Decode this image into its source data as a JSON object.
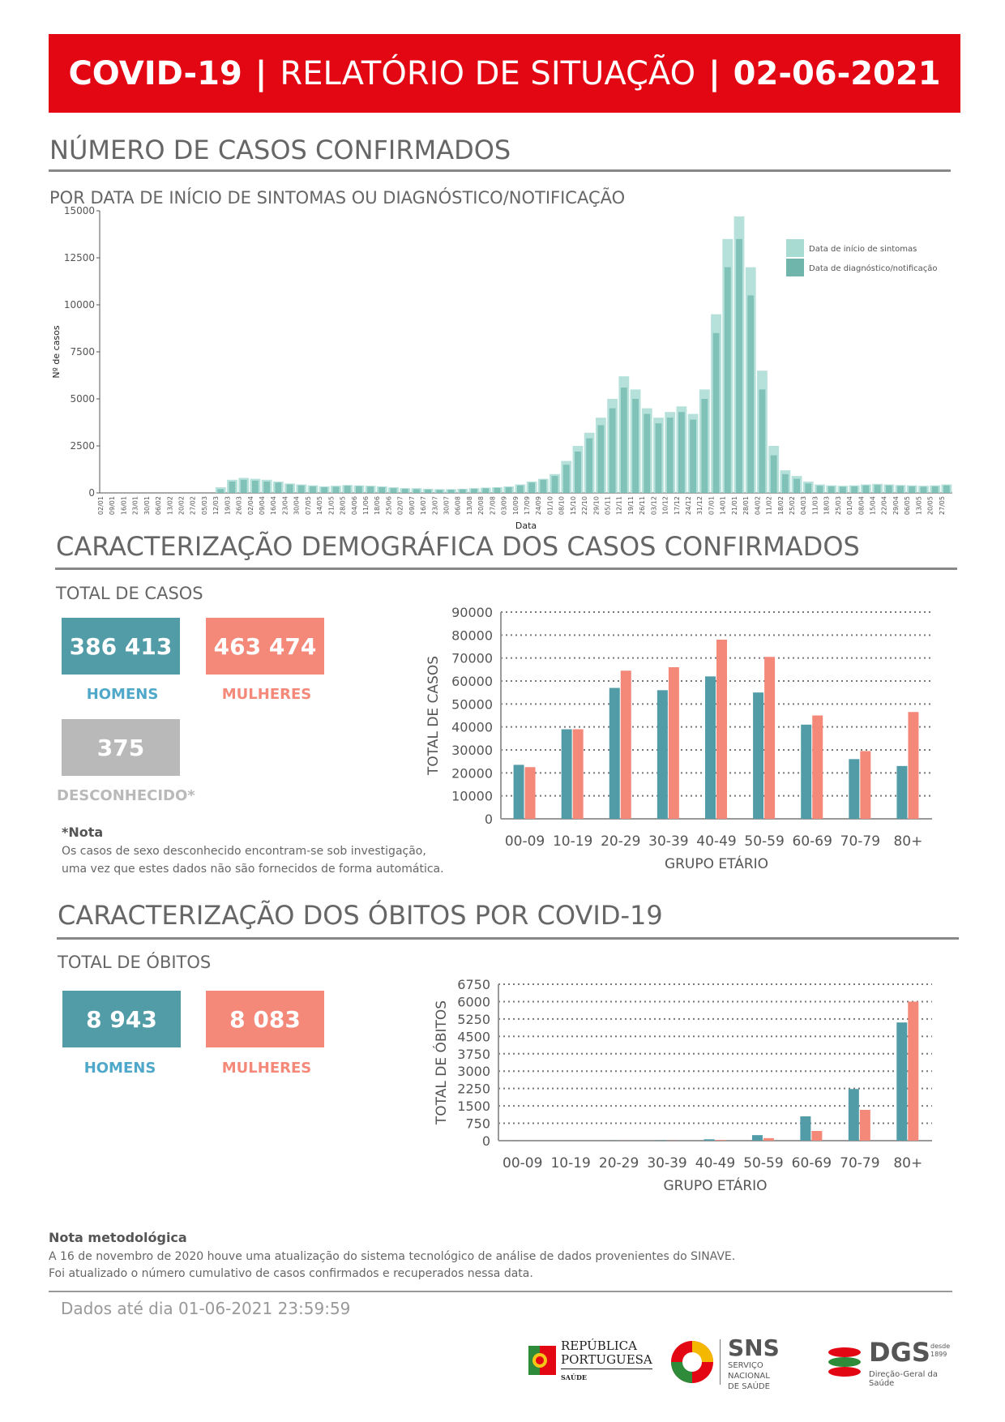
{
  "header": {
    "part1": "COVID-19",
    "sep1": "|",
    "part2": "RELATÓRIO DE SITUAÇÃO",
    "sep2": "|",
    "date": "02-06-2021"
  },
  "section_cases": {
    "title": "NÚMERO DE CASOS CONFIRMADOS",
    "subtitle": "POR DATA DE INÍCIO DE SINTOMAS OU DIAGNÓSTICO/NOTIFICAÇÃO"
  },
  "section_demo": {
    "title": "CARACTERIZAÇÃO DEMOGRÁFICA DOS CASOS CONFIRMADOS",
    "total_label": "TOTAL DE CASOS",
    "men_value": "386 413",
    "men_label": "HOMENS",
    "women_value": "463 474",
    "women_label": "MULHERES",
    "unknown_value": "375",
    "unknown_label": "DESCONHECIDO*",
    "note_title": "*Nota",
    "note_line1": "Os casos de sexo desconhecido encontram-se sob investigação,",
    "note_line2": "uma vez que estes dados não são fornecidos de forma automática."
  },
  "section_deaths": {
    "title": "CARACTERIZAÇÃO DOS ÓBITOS POR COVID-19",
    "total_label": "TOTAL DE ÓBITOS",
    "men_value": "8 943",
    "men_label": "HOMENS",
    "women_value": "8 083",
    "women_label": "MULHERES"
  },
  "methodology": {
    "title": "Nota metodológica",
    "line1": "A 16 de novembro de 2020 houve uma atualização do sistema tecnológico de análise de dados provenientes do SINAVE.",
    "line2": "Foi atualizado o número cumulativo de casos confirmados e recuperados nessa data."
  },
  "footer": {
    "data_until": "Dados até dia 01-06-2021 23:59:59",
    "logo1_line1": "REPÚBLICA",
    "logo1_line2": "PORTUGUESA",
    "logo1_line3": "SAÚDE",
    "logo2_main": "SNS",
    "logo2_line1": "SERVIÇO NACIONAL",
    "logo2_line2": "DE SAÚDE",
    "logo3_main": "DGS",
    "logo3_since1": "desde",
    "logo3_since2": "1899",
    "logo3_sub": "Direção-Geral da Saúde"
  },
  "colors": {
    "banner": "#e30613",
    "men": "#529ca8",
    "women": "#f4897a",
    "unknown": "#b9b9b9",
    "symptoms": "#a8dcd3",
    "diagnosis": "#6fb5ac"
  },
  "chart_data": [
    {
      "type": "bar",
      "ylabel": "Nº de casos",
      "xlabel": "Data",
      "ylim": [
        0,
        15000
      ],
      "yticks": [
        0,
        2500,
        5000,
        7500,
        10000,
        12500,
        15000
      ],
      "legend_position": "top-right",
      "xtick_labels": [
        "02/01",
        "09/01",
        "16/01",
        "23/01",
        "30/01",
        "06/02",
        "13/02",
        "20/02",
        "27/02",
        "05/03",
        "12/03",
        "19/03",
        "26/03",
        "02/04",
        "09/04",
        "16/04",
        "23/04",
        "30/04",
        "07/05",
        "14/05",
        "21/05",
        "28/05",
        "04/06",
        "11/06",
        "18/06",
        "25/06",
        "02/07",
        "09/07",
        "16/07",
        "23/07",
        "30/07",
        "06/08",
        "13/08",
        "20/08",
        "27/08",
        "03/09",
        "10/09",
        "17/09",
        "24/09",
        "01/10",
        "08/10",
        "15/10",
        "22/10",
        "29/10",
        "05/11",
        "12/11",
        "19/11",
        "26/11",
        "03/12",
        "10/12",
        "17/12",
        "24/12",
        "31/12",
        "07/01",
        "14/01",
        "21/01",
        "28/01",
        "04/02",
        "11/02",
        "18/02",
        "25/02",
        "04/03",
        "11/03",
        "18/03",
        "25/03",
        "01/04",
        "08/04",
        "15/04",
        "22/04",
        "29/04",
        "06/05",
        "13/05",
        "20/05",
        "27/05"
      ],
      "series": [
        {
          "name": "Data de início de sintomas",
          "values": [
            0,
            0,
            0,
            0,
            0,
            0,
            0,
            0,
            0,
            0,
            300,
            700,
            800,
            750,
            700,
            600,
            500,
            450,
            400,
            350,
            380,
            420,
            400,
            380,
            350,
            300,
            250,
            250,
            220,
            200,
            200,
            220,
            250,
            280,
            300,
            350,
            450,
            600,
            750,
            1000,
            1700,
            2500,
            3200,
            4000,
            5000,
            6200,
            5500,
            4500,
            4000,
            4300,
            4600,
            4200,
            5500,
            9500,
            13500,
            14700,
            12000,
            6500,
            2500,
            1200,
            900,
            600,
            450,
            400,
            380,
            400,
            450,
            480,
            450,
            420,
            400,
            380,
            400,
            450
          ]
        },
        {
          "name": "Data de diagnóstico/notificação",
          "values": [
            0,
            0,
            0,
            0,
            0,
            0,
            0,
            0,
            0,
            0,
            200,
            600,
            700,
            650,
            600,
            550,
            450,
            400,
            350,
            300,
            330,
            380,
            360,
            340,
            300,
            250,
            220,
            200,
            180,
            160,
            170,
            190,
            220,
            250,
            270,
            300,
            400,
            550,
            700,
            900,
            1500,
            2200,
            2900,
            3600,
            4500,
            5600,
            5000,
            4200,
            3700,
            4000,
            4300,
            3900,
            5000,
            8500,
            12000,
            13500,
            10500,
            5500,
            2000,
            1000,
            750,
            500,
            380,
            350,
            330,
            350,
            400,
            420,
            400,
            370,
            350,
            330,
            350,
            400
          ]
        }
      ]
    },
    {
      "type": "bar",
      "ylabel": "TOTAL DE CASOS",
      "xlabel": "GRUPO ETÁRIO",
      "ylim": [
        0,
        90000
      ],
      "yticks": [
        0,
        10000,
        20000,
        30000,
        40000,
        50000,
        60000,
        70000,
        80000,
        90000
      ],
      "categories": [
        "00-09",
        "10-19",
        "20-29",
        "30-39",
        "40-49",
        "50-59",
        "60-69",
        "70-79",
        "80+"
      ],
      "series": [
        {
          "name": "HOMENS",
          "values": [
            23500,
            39000,
            57000,
            56000,
            62000,
            55000,
            41000,
            26000,
            23000
          ]
        },
        {
          "name": "MULHERES",
          "values": [
            22500,
            39000,
            64500,
            66000,
            78000,
            70500,
            45000,
            29500,
            46500
          ]
        }
      ]
    },
    {
      "type": "bar",
      "ylabel": "TOTAL DE ÓBITOS",
      "xlabel": "GRUPO ETÁRIO",
      "ylim": [
        0,
        6750
      ],
      "yticks": [
        0,
        750,
        1500,
        2250,
        3000,
        3750,
        4500,
        5250,
        6000,
        6750
      ],
      "categories": [
        "00-09",
        "10-19",
        "20-29",
        "30-39",
        "40-49",
        "50-59",
        "60-69",
        "70-79",
        "80+"
      ],
      "series": [
        {
          "name": "HOMENS",
          "values": [
            1,
            1,
            5,
            15,
            60,
            240,
            1050,
            2230,
            5100
          ]
        },
        {
          "name": "MULHERES",
          "values": [
            1,
            1,
            3,
            8,
            30,
            110,
            420,
            1330,
            6000
          ]
        }
      ]
    }
  ]
}
